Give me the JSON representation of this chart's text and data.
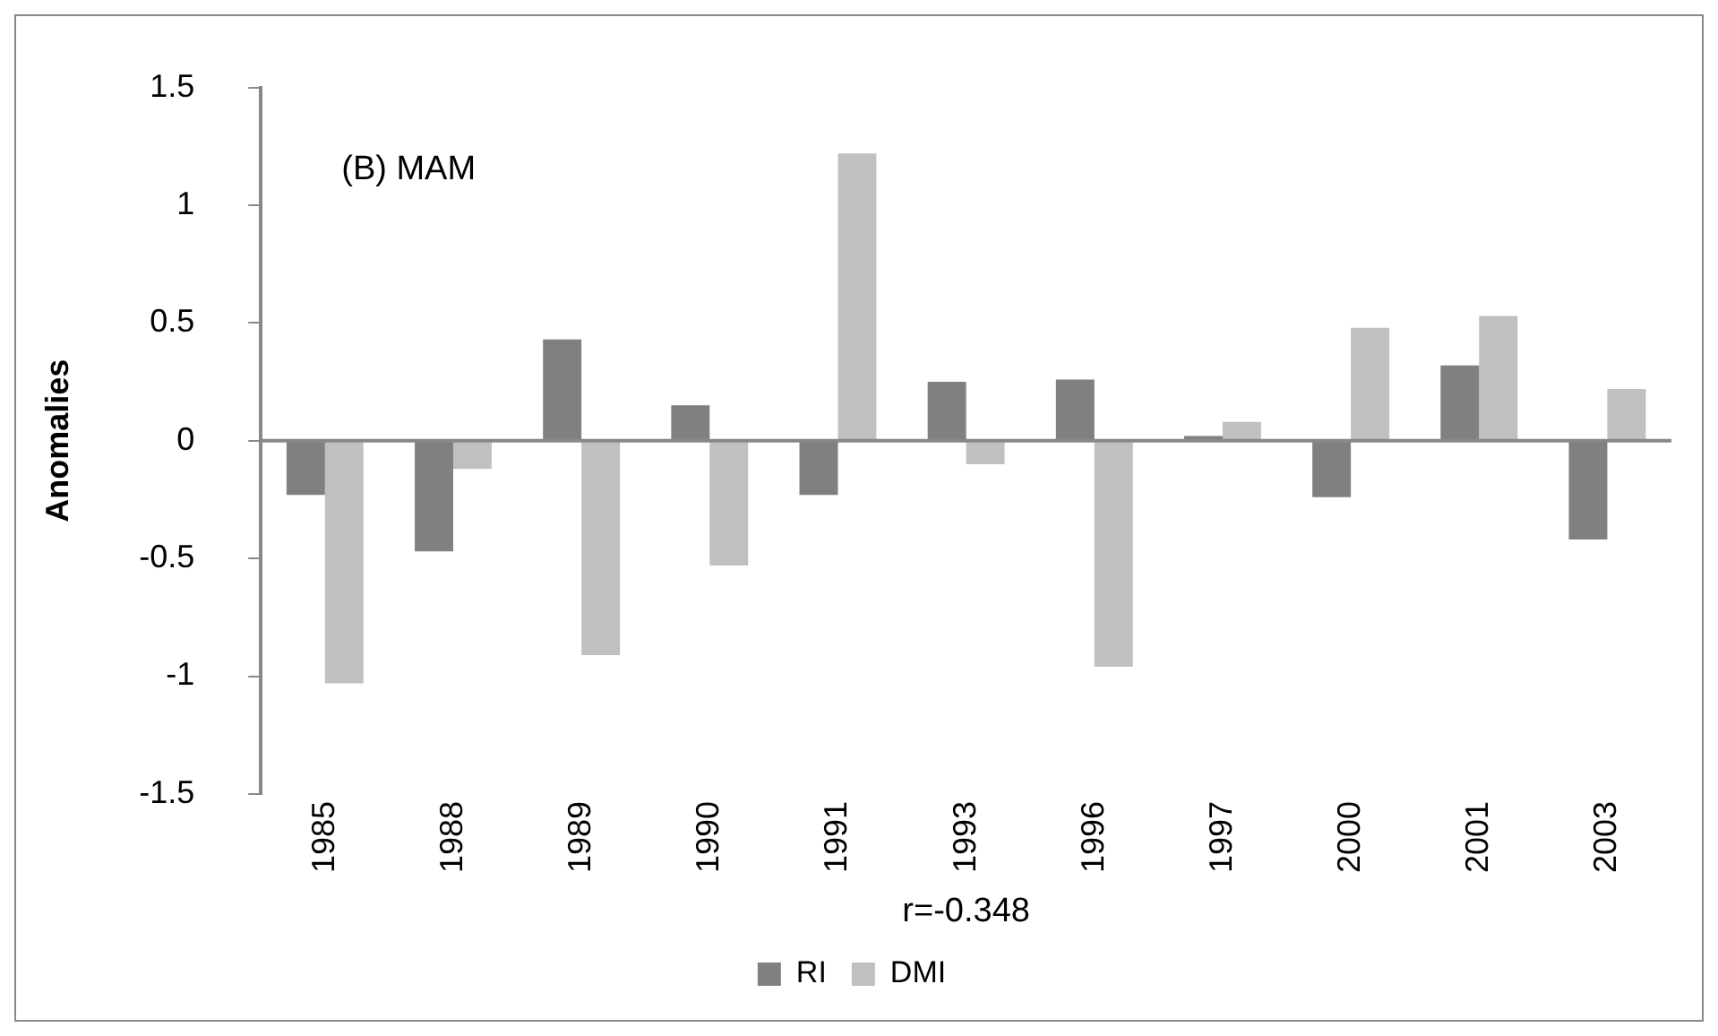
{
  "chart_data": {
    "type": "bar",
    "ylabel": "Anomalies",
    "categories": [
      "1985",
      "1988",
      "1989",
      "1990",
      "1991",
      "1993",
      "1996",
      "1997",
      "2000",
      "2001",
      "2003"
    ],
    "series": [
      {
        "name": "RI",
        "color": "#808080",
        "values": [
          -0.23,
          -0.47,
          0.43,
          0.15,
          -0.23,
          0.25,
          0.26,
          0.02,
          -0.24,
          0.32,
          -0.42
        ]
      },
      {
        "name": "DMI",
        "color": "#c0c0c0",
        "values": [
          -1.03,
          -0.12,
          -0.91,
          -0.53,
          1.22,
          -0.1,
          -0.96,
          0.08,
          0.48,
          0.53,
          0.22
        ]
      }
    ],
    "ylim": [
      -1.5,
      1.5
    ],
    "yticks": [
      -1.5,
      -1,
      -0.5,
      0,
      0.5,
      1,
      1.5
    ],
    "grid": false,
    "ref_lines": [
      {
        "axis": "y",
        "value": 0,
        "color": "#888888"
      }
    ],
    "legend": "bottom",
    "annotations": [
      "(B) MAM",
      "r=-0.348"
    ]
  }
}
